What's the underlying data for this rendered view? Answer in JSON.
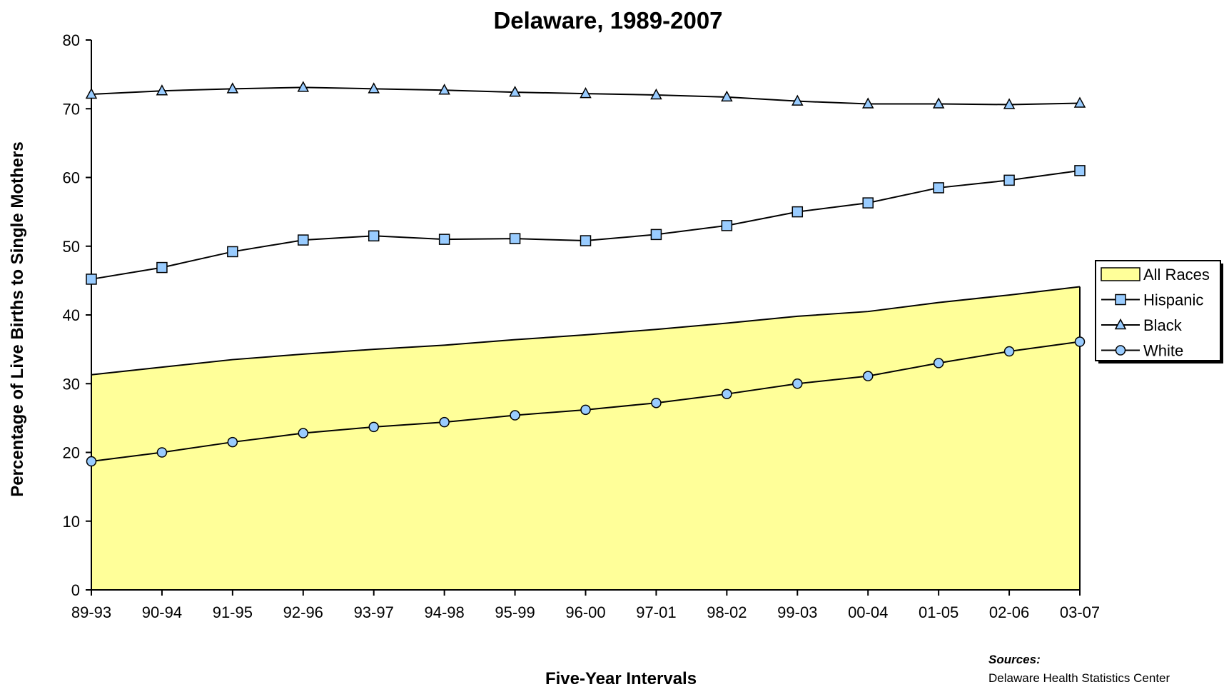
{
  "chart_data": {
    "type": "line",
    "title": "Delaware, 1989-2007",
    "xlabel": "Five-Year Intervals",
    "ylabel": "Percentage of Live Births to Single Mothers",
    "ylim": [
      0,
      80
    ],
    "yticks": [
      "0",
      "10",
      "20",
      "30",
      "40",
      "50",
      "60",
      "70",
      "80"
    ],
    "grid": false,
    "legend_position": "right",
    "categories": [
      "89-93",
      "90-94",
      "91-95",
      "92-96",
      "93-97",
      "94-98",
      "95-99",
      "96-00",
      "97-01",
      "98-02",
      "99-03",
      "00-04",
      "01-05",
      "02-06",
      "03-07"
    ],
    "series": [
      {
        "name": "All Races",
        "kind": "area",
        "marker": "none",
        "color": "#FFFF99",
        "values": [
          31.3,
          32.4,
          33.5,
          34.3,
          35.0,
          35.6,
          36.4,
          37.1,
          37.9,
          38.8,
          39.8,
          40.5,
          41.8,
          42.9,
          44.1
        ]
      },
      {
        "name": "Hispanic",
        "kind": "line",
        "marker": "square",
        "color": "#000000",
        "marker_fill": "#99CCFF",
        "values": [
          45.2,
          46.9,
          49.2,
          50.9,
          51.5,
          51.0,
          51.1,
          50.8,
          51.7,
          53.0,
          55.0,
          56.3,
          58.5,
          59.6,
          61.0
        ]
      },
      {
        "name": "Black",
        "kind": "line",
        "marker": "triangle",
        "color": "#000000",
        "marker_fill": "#99CCFF",
        "values": [
          72.1,
          72.6,
          72.9,
          73.1,
          72.9,
          72.7,
          72.4,
          72.2,
          72.0,
          71.7,
          71.1,
          70.7,
          70.7,
          70.6,
          70.8
        ]
      },
      {
        "name": "White",
        "kind": "line",
        "marker": "circle",
        "color": "#000000",
        "marker_fill": "#99CCFF",
        "values": [
          18.7,
          20.0,
          21.5,
          22.8,
          23.7,
          24.4,
          25.4,
          26.2,
          27.2,
          28.5,
          30.0,
          31.1,
          33.0,
          34.7,
          36.1
        ]
      }
    ]
  },
  "sources": {
    "heading": "Sources:",
    "text": "Delaware Health Statistics Center"
  }
}
